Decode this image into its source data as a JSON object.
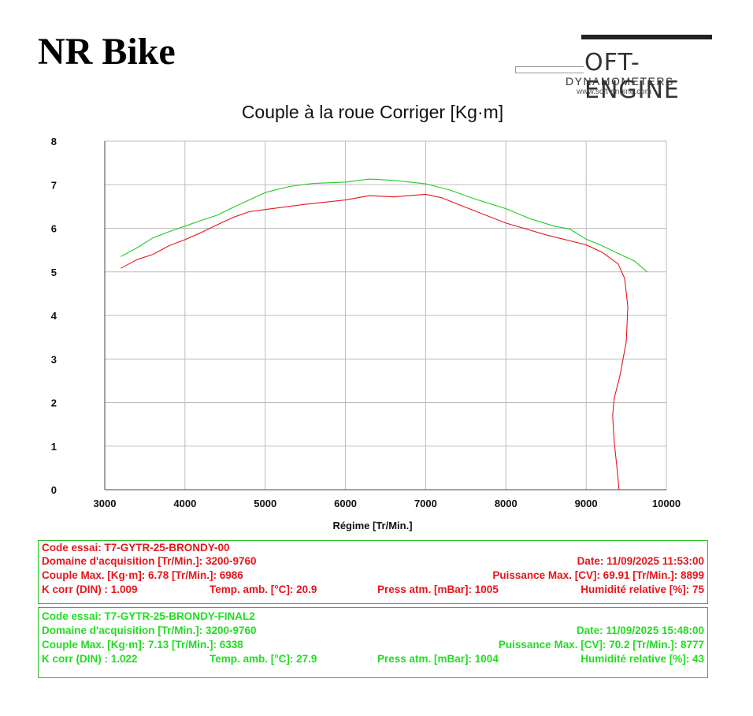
{
  "header": {
    "brand": "NR Bike",
    "logo": {
      "wordmark": "OFT-ENGINE",
      "subtitle": "DYNAMOMETERS",
      "url": "www.soft-engine.com"
    }
  },
  "chart_data": {
    "type": "line",
    "title": "Couple à la roue Corriger [Kg·m]",
    "xlabel": "Régime [Tr/Min.]",
    "ylabel": "",
    "xlim": [
      3000,
      10000
    ],
    "ylim": [
      0,
      8
    ],
    "xticks": [
      3000,
      4000,
      5000,
      6000,
      7000,
      8000,
      9000,
      10000
    ],
    "yticks": [
      0,
      1,
      2,
      3,
      4,
      5,
      6,
      7,
      8
    ],
    "grid": true,
    "series": [
      {
        "color": "#e8151b",
        "points": [
          [
            3200,
            5.08
          ],
          [
            3400,
            5.28
          ],
          [
            3600,
            5.4
          ],
          [
            3800,
            5.6
          ],
          [
            4000,
            5.74
          ],
          [
            4200,
            5.9
          ],
          [
            4400,
            6.08
          ],
          [
            4600,
            6.25
          ],
          [
            4800,
            6.38
          ],
          [
            5000,
            6.43
          ],
          [
            5500,
            6.55
          ],
          [
            6000,
            6.65
          ],
          [
            6300,
            6.75
          ],
          [
            6600,
            6.72
          ],
          [
            6800,
            6.75
          ],
          [
            7000,
            6.78
          ],
          [
            7200,
            6.7
          ],
          [
            7500,
            6.48
          ],
          [
            8000,
            6.12
          ],
          [
            8500,
            5.85
          ],
          [
            9000,
            5.62
          ],
          [
            9200,
            5.45
          ],
          [
            9400,
            5.18
          ],
          [
            9480,
            4.85
          ],
          [
            9520,
            4.2
          ],
          [
            9500,
            3.4
          ],
          [
            9420,
            2.6
          ],
          [
            9350,
            2.1
          ],
          [
            9330,
            1.7
          ],
          [
            9350,
            1.1
          ],
          [
            9390,
            0.4
          ],
          [
            9410,
            0.0
          ]
        ]
      },
      {
        "color": "#22cc22",
        "points": [
          [
            3200,
            5.35
          ],
          [
            3400,
            5.55
          ],
          [
            3600,
            5.78
          ],
          [
            3800,
            5.92
          ],
          [
            4000,
            6.05
          ],
          [
            4200,
            6.18
          ],
          [
            4400,
            6.3
          ],
          [
            4600,
            6.48
          ],
          [
            4800,
            6.65
          ],
          [
            5000,
            6.82
          ],
          [
            5300,
            6.96
          ],
          [
            5600,
            7.03
          ],
          [
            6000,
            7.06
          ],
          [
            6300,
            7.13
          ],
          [
            6600,
            7.1
          ],
          [
            7000,
            7.02
          ],
          [
            7300,
            6.88
          ],
          [
            7600,
            6.68
          ],
          [
            8000,
            6.45
          ],
          [
            8300,
            6.22
          ],
          [
            8600,
            6.05
          ],
          [
            8800,
            5.98
          ],
          [
            9000,
            5.75
          ],
          [
            9200,
            5.6
          ],
          [
            9400,
            5.42
          ],
          [
            9600,
            5.25
          ],
          [
            9760,
            5.0
          ]
        ]
      }
    ]
  },
  "runs": [
    {
      "color": "#e8151b",
      "code": "Code essai: T7-GYTR-25-BRONDY-00",
      "domain": "Domaine d'acquisition [Tr/Min.]: 3200-9760",
      "date": "Date: 11/09/2025 11:53:00",
      "torque": "Couple Max. [Kg·m]: 6.78 [Tr/Min.]: 6986",
      "power": "Puissance Max. [CV]: 69.91 [Tr/Min.]: 8899",
      "kcorr": "K corr (DIN) : 1.009",
      "temp": "Temp. amb. [°C]: 20.9",
      "press": "Press atm. [mBar]: 1005",
      "humidity": "Humidité relative [%]: 75"
    },
    {
      "color": "#22dd22",
      "code": "Code essai: T7-GYTR-25-BRONDY-FINAL2",
      "domain": "Domaine d'acquisition [Tr/Min.]: 3200-9760",
      "date": "Date: 11/09/2025 15:48:00",
      "torque": "Couple Max. [Kg·m]: 7.13 [Tr/Min.]: 6338",
      "power": "Puissance Max. [CV]: 70.2 [Tr/Min.]: 8777",
      "kcorr": "K corr (DIN) : 1.022",
      "temp": "Temp. amb. [°C]: 27.9",
      "press": "Press atm. [mBar]: 1004",
      "humidity": "Humidité relative [%]: 43"
    }
  ]
}
